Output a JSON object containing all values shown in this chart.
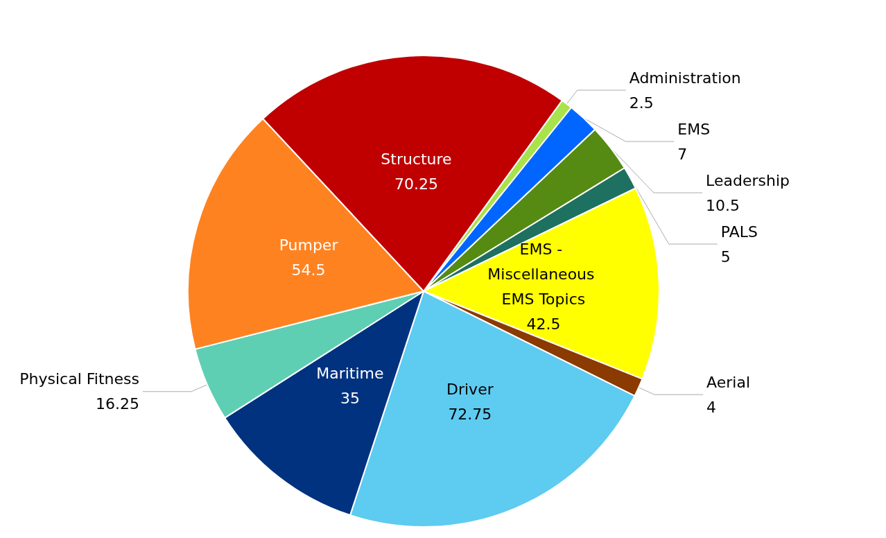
{
  "chart_data": {
    "type": "pie",
    "categories": [
      "Administration",
      "EMS",
      "Leadership",
      "PALS",
      "EMS - Miscellaneous EMS Topics",
      "Aerial",
      "Driver",
      "Maritime",
      "Physical Fitness",
      "Pumper",
      "Structure"
    ],
    "values": [
      2.5,
      7,
      10.5,
      5,
      42.5,
      4,
      72.75,
      35,
      16.25,
      54.5,
      70.25
    ],
    "colors": [
      "#a9e34b",
      "#0066ff",
      "#558b13",
      "#1e7060",
      "#ffff00",
      "#8b3a00",
      "#5ecbf1",
      "#003280",
      "#5ecfb3",
      "#ff8221",
      "#c00000"
    ],
    "data_labels": true
  }
}
